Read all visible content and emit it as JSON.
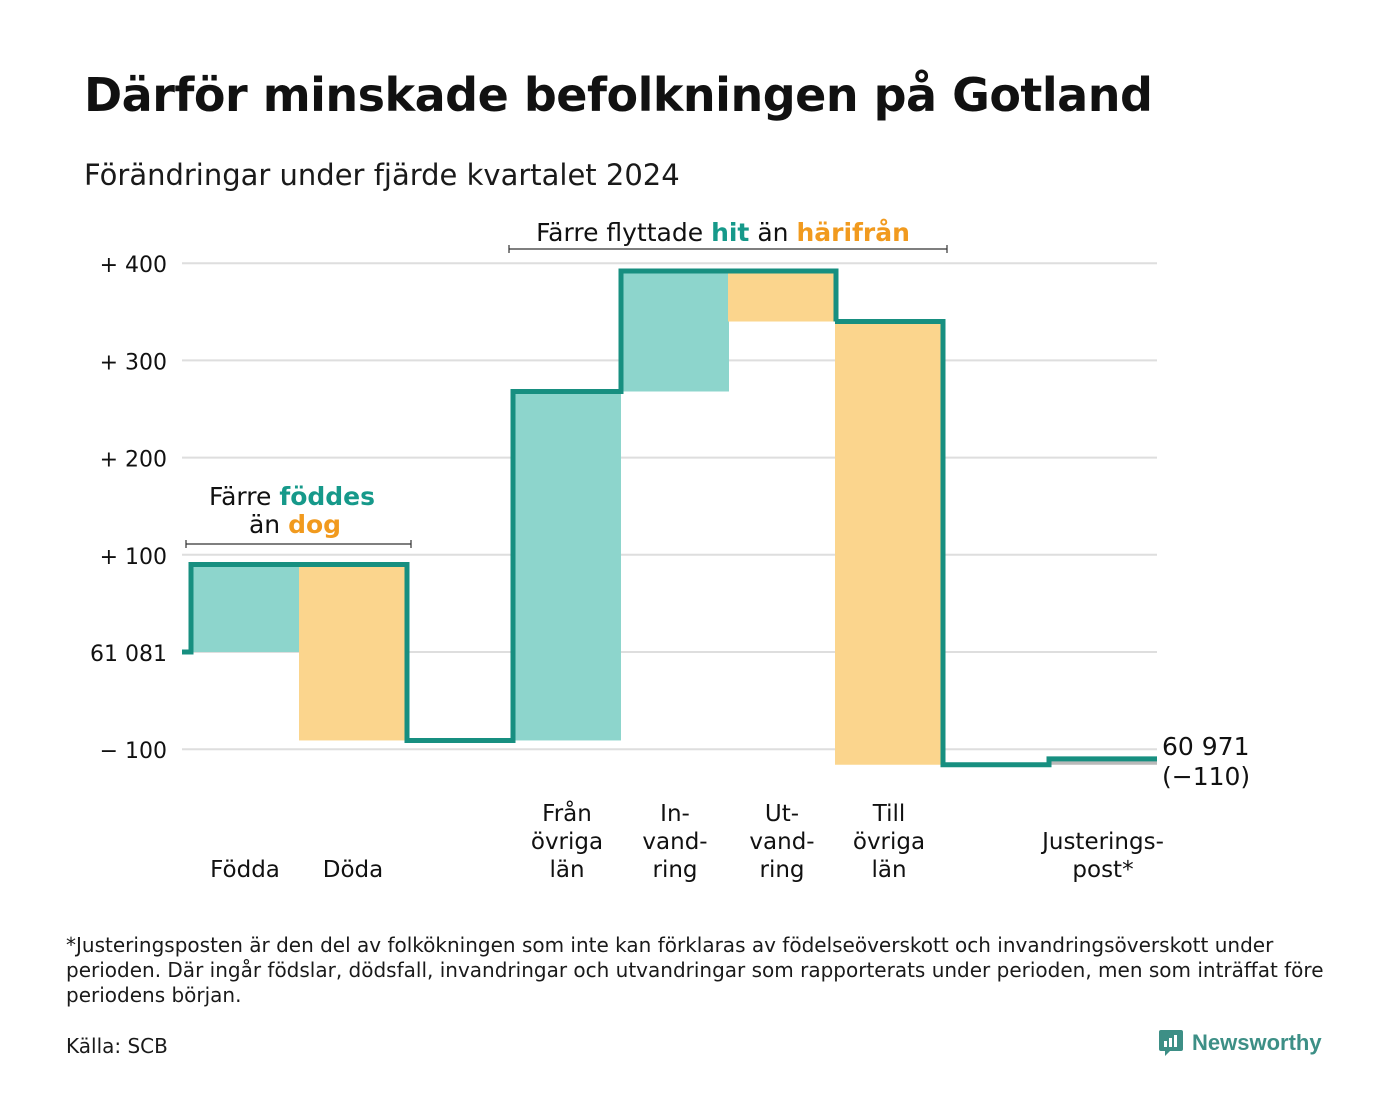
{
  "title": "Därför minskade befolkningen på Gotland",
  "subtitle": "Förändringar under fjärde kvartalet 2024",
  "chart_data": {
    "type": "waterfall",
    "start_value": 61081,
    "start_label": "61 081",
    "end_value": 60971,
    "end_label": "60 971",
    "end_change_label": "(−110)",
    "y_relative_range": [
      -110,
      400
    ],
    "y_ticks": [
      {
        "value": 400,
        "label": "+ 400"
      },
      {
        "value": 300,
        "label": "+ 300"
      },
      {
        "value": 200,
        "label": "+ 200"
      },
      {
        "value": 100,
        "label": "+ 100"
      },
      {
        "value": 0,
        "label": "61 081"
      },
      {
        "value": -100,
        "label": "− 100"
      }
    ],
    "grid": true,
    "steps": [
      {
        "label_lines": [
          "Födda"
        ],
        "change": 90,
        "kind": "inflow"
      },
      {
        "label_lines": [
          "Döda"
        ],
        "change": -181,
        "kind": "outflow"
      },
      {
        "label_lines": [
          "Från",
          "övriga",
          "län"
        ],
        "change": 359,
        "kind": "inflow"
      },
      {
        "label_lines": [
          "In-",
          "vand-",
          "ring"
        ],
        "change": 124,
        "kind": "inflow"
      },
      {
        "label_lines": [
          "Ut-",
          "vand-",
          "ring"
        ],
        "change": -52,
        "kind": "outflow"
      },
      {
        "label_lines": [
          "Till",
          "övriga",
          "län"
        ],
        "change": -456,
        "kind": "outflow"
      },
      {
        "label_lines": [
          "Justerings-",
          "post*"
        ],
        "change": 6,
        "kind": "adjustment"
      }
    ],
    "annotations": {
      "births": {
        "line1_prefix": "Färre ",
        "line1_highlight": "föddes",
        "line2_prefix": "än ",
        "line2_highlight": "dog"
      },
      "migration": {
        "prefix": "Färre flyttade ",
        "highlight1": "hit",
        "middle": " än ",
        "highlight2": "härifrån"
      }
    },
    "colors": {
      "inflow": "#8dd5cc",
      "outflow": "#fbd58d",
      "adjustment": "#b9b9b9",
      "line": "#178f80",
      "teal_text": "#16998a",
      "orange_text": "#f19a1e",
      "grid": "#dedede"
    }
  },
  "footnote": "*Justeringsposten är den del av folkökningen som inte kan förklaras av födelseöverskott och invandringsöverskott under perioden. Där ingår födslar, dödsfall, invandringar och utvandringar som rapporterats under perioden, men som inträffat före periodens början.",
  "source": "Källa: SCB",
  "brand": {
    "name": "Newsworthy",
    "icon": "newsworthy-logo-icon"
  }
}
